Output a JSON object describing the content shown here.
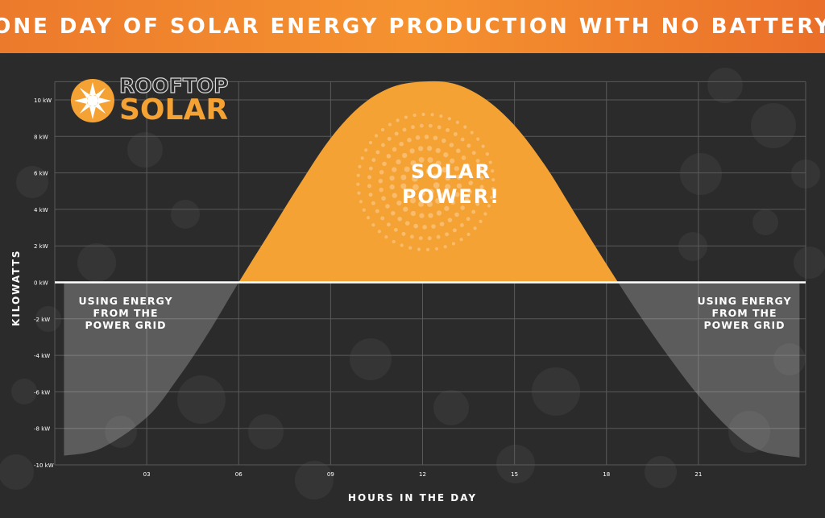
{
  "title": "ONE DAY OF SOLAR ENERGY PRODUCTION WITH NO BATTERY",
  "logo": {
    "line1": "ROOFTOP",
    "line2": "SOLAR",
    "mark_icon": "sun-burst-icon"
  },
  "colors": {
    "accent": "#f5a234",
    "banner": "#ec7a2c",
    "background": "#2b2b2b",
    "grid_draw": "#5a5a5a"
  },
  "chart_data": {
    "type": "area",
    "xlabel": "HOURS IN THE DAY",
    "ylabel": "KILOWATTS",
    "xlim": [
      0,
      24.5
    ],
    "ylim": [
      -10,
      11
    ],
    "x_ticks": [
      3,
      6,
      9,
      12,
      15,
      18,
      21
    ],
    "x_tick_labels": [
      "03",
      "06",
      "09",
      "12",
      "15",
      "18",
      "21"
    ],
    "y_ticks": [
      10,
      8,
      6,
      4,
      2,
      0,
      -2,
      -4,
      -6,
      -8,
      -10
    ],
    "y_tick_labels": [
      "10 kW",
      "8 kW",
      "6 kW",
      "4 kW",
      "2 kW",
      "0 kW",
      "-2 kW",
      "-4 kW",
      "-6 kW",
      "-8 kW",
      "-10 kW"
    ],
    "grid": true,
    "series": [
      {
        "name": "",
        "color": "#f5a234",
        "x": [
          0.3,
          1.5,
          3,
          4,
          5,
          6,
          7,
          8,
          9,
          10,
          11,
          12,
          13,
          14,
          15,
          16,
          17,
          18,
          19,
          20,
          21,
          22,
          23,
          24.3
        ],
        "y": [
          -9.5,
          -9.1,
          -7.4,
          -5.3,
          -2.8,
          0.0,
          2.7,
          5.4,
          7.9,
          9.7,
          10.7,
          11.0,
          10.9,
          10.1,
          8.6,
          6.4,
          3.7,
          1.0,
          -1.6,
          -4.0,
          -6.2,
          -8.0,
          -9.2,
          -9.6
        ]
      }
    ],
    "annotations": [
      {
        "text": "SOLAR\nPOWER!",
        "region": "positive"
      },
      {
        "text": "USING ENERGY\nFROM THE\nPOWER GRID",
        "region": "left-negative"
      },
      {
        "text": "USING ENERGY\nFROM THE\nPOWER GRID",
        "region": "right-negative"
      }
    ]
  }
}
